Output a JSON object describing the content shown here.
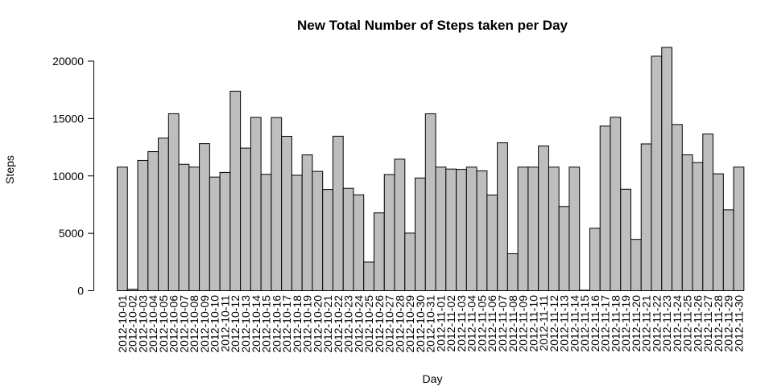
{
  "chart_data": {
    "type": "bar",
    "title": "New Total Number of Steps taken per Day",
    "xlabel": "Day",
    "ylabel": "Steps",
    "ylim": [
      0,
      21500
    ],
    "yticks": [
      0,
      5000,
      10000,
      15000,
      20000
    ],
    "grid": false,
    "bar_color": "#bebebe",
    "border_color": "#000000",
    "categories": [
      "2012-10-01",
      "2012-10-02",
      "2012-10-03",
      "2012-10-04",
      "2012-10-05",
      "2012-10-06",
      "2012-10-07",
      "2012-10-08",
      "2012-10-09",
      "2012-10-10",
      "2012-10-11",
      "2012-10-12",
      "2012-10-13",
      "2012-10-14",
      "2012-10-15",
      "2012-10-16",
      "2012-10-17",
      "2012-10-18",
      "2012-10-19",
      "2012-10-20",
      "2012-10-21",
      "2012-10-22",
      "2012-10-23",
      "2012-10-24",
      "2012-10-25",
      "2012-10-26",
      "2012-10-27",
      "2012-10-28",
      "2012-10-29",
      "2012-10-30",
      "2012-10-31",
      "2012-11-01",
      "2012-11-02",
      "2012-11-03",
      "2012-11-04",
      "2012-11-05",
      "2012-11-06",
      "2012-11-07",
      "2012-11-08",
      "2012-11-09",
      "2012-11-10",
      "2012-11-11",
      "2012-11-12",
      "2012-11-13",
      "2012-11-14",
      "2012-11-15",
      "2012-11-16",
      "2012-11-17",
      "2012-11-18",
      "2012-11-19",
      "2012-11-20",
      "2012-11-21",
      "2012-11-22",
      "2012-11-23",
      "2012-11-24",
      "2012-11-25",
      "2012-11-26",
      "2012-11-27",
      "2012-11-28",
      "2012-11-29",
      "2012-11-30"
    ],
    "values": [
      10766,
      126,
      11352,
      12116,
      13294,
      15420,
      11015,
      10766,
      12811,
      9900,
      10304,
      17382,
      12426,
      15098,
      10139,
      15084,
      13452,
      10056,
      11829,
      10395,
      8821,
      13460,
      8918,
      8355,
      2492,
      6778,
      10119,
      11458,
      5018,
      9819,
      15414,
      10766,
      10600,
      10571,
      10766,
      10439,
      8334,
      12883,
      3219,
      10766,
      10766,
      12608,
      10765,
      7336,
      10766,
      41,
      5441,
      14339,
      15110,
      8841,
      4472,
      12787,
      20427,
      21194,
      14478,
      11834,
      11162,
      13646,
      10183,
      7047,
      10766
    ]
  }
}
